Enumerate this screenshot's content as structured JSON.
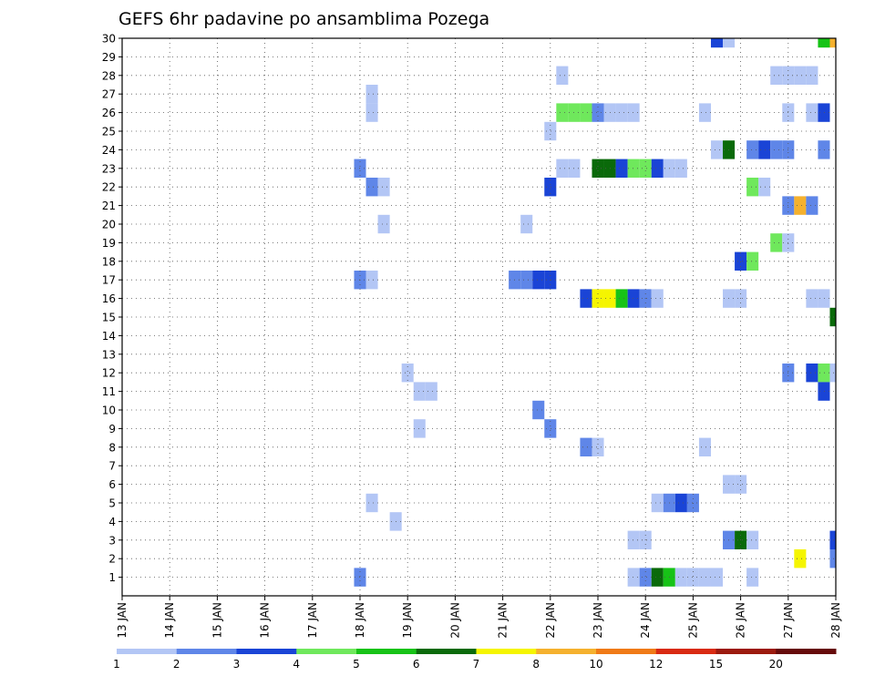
{
  "chart_data": {
    "type": "heatmap",
    "title": "GEFS 6hr padavine po ansamblima Pozega",
    "x_labels": [
      "13 JAN",
      "14 JAN",
      "15 JAN",
      "16 JAN",
      "17 JAN",
      "18 JAN",
      "19 JAN",
      "20 JAN",
      "21 JAN",
      "22 JAN",
      "23 JAN",
      "24 JAN",
      "25 JAN",
      "26 JAN",
      "27 JAN",
      "28 JAN"
    ],
    "y_labels": [
      "1",
      "2",
      "3",
      "4",
      "5",
      "6",
      "7",
      "8",
      "9",
      "10",
      "11",
      "12",
      "13",
      "14",
      "15",
      "16",
      "17",
      "18",
      "19",
      "20",
      "21",
      "22",
      "23",
      "24",
      "25",
      "26",
      "27",
      "28",
      "29",
      "30"
    ],
    "xlim": [
      0,
      15
    ],
    "ylim": [
      0,
      30
    ],
    "grid": true,
    "colorbar": {
      "labels": [
        "1",
        "2",
        "3",
        "4",
        "5",
        "6",
        "7",
        "8",
        "10",
        "12",
        "15",
        "20"
      ],
      "colors": [
        "#b3c6f5",
        "#5f86e8",
        "#1a44d6",
        "#6fe85c",
        "#17c317",
        "#0a6a0a",
        "#f5f500",
        "#f5b12e",
        "#f07a17",
        "#d92a12",
        "#9c1a0e",
        "#660a0a"
      ]
    },
    "points": [
      {
        "x": 12.5,
        "y": 30,
        "v": 3
      },
      {
        "x": 12.75,
        "y": 30,
        "v": 1
      },
      {
        "x": 14.75,
        "y": 30,
        "v": 5
      },
      {
        "x": 15,
        "y": 30,
        "v": 8
      },
      {
        "x": 9.25,
        "y": 28,
        "v": 1
      },
      {
        "x": 13.75,
        "y": 28,
        "v": 1
      },
      {
        "x": 14,
        "y": 28,
        "v": 1
      },
      {
        "x": 14.25,
        "y": 28,
        "v": 1
      },
      {
        "x": 14.5,
        "y": 28,
        "v": 1
      },
      {
        "x": 5.25,
        "y": 27,
        "v": 1
      },
      {
        "x": 5.25,
        "y": 26,
        "v": 1
      },
      {
        "x": 9.25,
        "y": 26,
        "v": 4
      },
      {
        "x": 9.5,
        "y": 26,
        "v": 4
      },
      {
        "x": 9.75,
        "y": 26,
        "v": 4
      },
      {
        "x": 10,
        "y": 26,
        "v": 2
      },
      {
        "x": 10.25,
        "y": 26,
        "v": 1
      },
      {
        "x": 10.5,
        "y": 26,
        "v": 1
      },
      {
        "x": 10.75,
        "y": 26,
        "v": 1
      },
      {
        "x": 12.25,
        "y": 26,
        "v": 1
      },
      {
        "x": 14,
        "y": 26,
        "v": 1
      },
      {
        "x": 14.5,
        "y": 26,
        "v": 1
      },
      {
        "x": 14.75,
        "y": 26,
        "v": 3
      },
      {
        "x": 9,
        "y": 25,
        "v": 1
      },
      {
        "x": 12.5,
        "y": 24,
        "v": 1
      },
      {
        "x": 12.75,
        "y": 24,
        "v": 6
      },
      {
        "x": 13.25,
        "y": 24,
        "v": 2
      },
      {
        "x": 13.5,
        "y": 24,
        "v": 3
      },
      {
        "x": 13.75,
        "y": 24,
        "v": 2
      },
      {
        "x": 14,
        "y": 24,
        "v": 2
      },
      {
        "x": 14.75,
        "y": 24,
        "v": 2
      },
      {
        "x": 5,
        "y": 23,
        "v": 2
      },
      {
        "x": 9.25,
        "y": 23,
        "v": 1
      },
      {
        "x": 9.5,
        "y": 23,
        "v": 1
      },
      {
        "x": 10,
        "y": 23,
        "v": 6
      },
      {
        "x": 10.25,
        "y": 23,
        "v": 6
      },
      {
        "x": 10.5,
        "y": 23,
        "v": 3
      },
      {
        "x": 10.75,
        "y": 23,
        "v": 4
      },
      {
        "x": 11,
        "y": 23,
        "v": 4
      },
      {
        "x": 11.25,
        "y": 23,
        "v": 3
      },
      {
        "x": 11.5,
        "y": 23,
        "v": 1
      },
      {
        "x": 11.75,
        "y": 23,
        "v": 1
      },
      {
        "x": 5.25,
        "y": 22,
        "v": 2
      },
      {
        "x": 5.5,
        "y": 22,
        "v": 1
      },
      {
        "x": 9,
        "y": 22,
        "v": 3
      },
      {
        "x": 13.25,
        "y": 22,
        "v": 4
      },
      {
        "x": 13.5,
        "y": 22,
        "v": 1
      },
      {
        "x": 14,
        "y": 21,
        "v": 2
      },
      {
        "x": 14.25,
        "y": 21,
        "v": 8
      },
      {
        "x": 14.5,
        "y": 21,
        "v": 2
      },
      {
        "x": 5.5,
        "y": 20,
        "v": 1
      },
      {
        "x": 8.5,
        "y": 20,
        "v": 1
      },
      {
        "x": 13.75,
        "y": 19,
        "v": 4
      },
      {
        "x": 14,
        "y": 19,
        "v": 1
      },
      {
        "x": 13,
        "y": 18,
        "v": 3
      },
      {
        "x": 13.25,
        "y": 18,
        "v": 4
      },
      {
        "x": 5,
        "y": 17,
        "v": 2
      },
      {
        "x": 5.25,
        "y": 17,
        "v": 1
      },
      {
        "x": 8.25,
        "y": 17,
        "v": 2
      },
      {
        "x": 8.5,
        "y": 17,
        "v": 2
      },
      {
        "x": 8.75,
        "y": 17,
        "v": 3
      },
      {
        "x": 9,
        "y": 17,
        "v": 3
      },
      {
        "x": 9.75,
        "y": 16,
        "v": 3
      },
      {
        "x": 10,
        "y": 16,
        "v": 7
      },
      {
        "x": 10.25,
        "y": 16,
        "v": 7
      },
      {
        "x": 10.5,
        "y": 16,
        "v": 5
      },
      {
        "x": 10.75,
        "y": 16,
        "v": 3
      },
      {
        "x": 11,
        "y": 16,
        "v": 2
      },
      {
        "x": 11.25,
        "y": 16,
        "v": 1
      },
      {
        "x": 12.75,
        "y": 16,
        "v": 1
      },
      {
        "x": 13,
        "y": 16,
        "v": 1
      },
      {
        "x": 14.5,
        "y": 16,
        "v": 1
      },
      {
        "x": 14.75,
        "y": 16,
        "v": 1
      },
      {
        "x": 15,
        "y": 15,
        "v": 6
      },
      {
        "x": 6,
        "y": 12,
        "v": 1
      },
      {
        "x": 14,
        "y": 12,
        "v": 2
      },
      {
        "x": 14.5,
        "y": 12,
        "v": 3
      },
      {
        "x": 14.75,
        "y": 12,
        "v": 4
      },
      {
        "x": 15,
        "y": 12,
        "v": 1
      },
      {
        "x": 6.25,
        "y": 11,
        "v": 1
      },
      {
        "x": 6.5,
        "y": 11,
        "v": 1
      },
      {
        "x": 14.75,
        "y": 11,
        "v": 3
      },
      {
        "x": 8.75,
        "y": 10,
        "v": 2
      },
      {
        "x": 6.25,
        "y": 9,
        "v": 1
      },
      {
        "x": 9,
        "y": 9,
        "v": 2
      },
      {
        "x": 9.75,
        "y": 8,
        "v": 2
      },
      {
        "x": 10,
        "y": 8,
        "v": 1
      },
      {
        "x": 12.25,
        "y": 8,
        "v": 1
      },
      {
        "x": 12.75,
        "y": 6,
        "v": 1
      },
      {
        "x": 13,
        "y": 6,
        "v": 1
      },
      {
        "x": 5.25,
        "y": 5,
        "v": 1
      },
      {
        "x": 11.25,
        "y": 5,
        "v": 1
      },
      {
        "x": 11.5,
        "y": 5,
        "v": 2
      },
      {
        "x": 11.75,
        "y": 5,
        "v": 3
      },
      {
        "x": 12,
        "y": 5,
        "v": 2
      },
      {
        "x": 5.75,
        "y": 4,
        "v": 1
      },
      {
        "x": 10.75,
        "y": 3,
        "v": 1
      },
      {
        "x": 11,
        "y": 3,
        "v": 1
      },
      {
        "x": 12.75,
        "y": 3,
        "v": 2
      },
      {
        "x": 13,
        "y": 3,
        "v": 6
      },
      {
        "x": 13.25,
        "y": 3,
        "v": 1
      },
      {
        "x": 15,
        "y": 3,
        "v": 3
      },
      {
        "x": 14.25,
        "y": 2,
        "v": 7
      },
      {
        "x": 15,
        "y": 2,
        "v": 2
      },
      {
        "x": 5,
        "y": 1,
        "v": 2
      },
      {
        "x": 10.75,
        "y": 1,
        "v": 1
      },
      {
        "x": 11,
        "y": 1,
        "v": 2
      },
      {
        "x": 11.25,
        "y": 1,
        "v": 6
      },
      {
        "x": 11.5,
        "y": 1,
        "v": 5
      },
      {
        "x": 11.75,
        "y": 1,
        "v": 1
      },
      {
        "x": 12,
        "y": 1,
        "v": 1
      },
      {
        "x": 12.25,
        "y": 1,
        "v": 1
      },
      {
        "x": 12.5,
        "y": 1,
        "v": 1
      },
      {
        "x": 13.25,
        "y": 1,
        "v": 1
      }
    ]
  }
}
